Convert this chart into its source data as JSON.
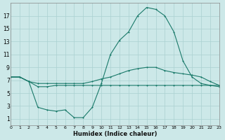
{
  "bg_color": "#cce8e8",
  "grid_color": "#aad0d0",
  "line_color": "#1a7a6a",
  "xlabel": "Humidex (Indice chaleur)",
  "xlim": [
    0,
    23
  ],
  "ylim": [
    0,
    19
  ],
  "yticks": [
    1,
    3,
    5,
    7,
    9,
    11,
    13,
    15,
    17
  ],
  "xticks": [
    0,
    1,
    2,
    3,
    4,
    5,
    6,
    7,
    8,
    9,
    10,
    11,
    12,
    13,
    14,
    15,
    16,
    17,
    18,
    19,
    20,
    21,
    22,
    23
  ],
  "line1_x": [
    0,
    1,
    2,
    3,
    4,
    5,
    6,
    7,
    8,
    9,
    10,
    11,
    12,
    13,
    14,
    15,
    16,
    17,
    18,
    19,
    20,
    21,
    22,
    23
  ],
  "line1_y": [
    7.5,
    7.5,
    6.8,
    6.0,
    6.0,
    6.2,
    6.2,
    6.2,
    6.2,
    6.2,
    6.2,
    6.2,
    6.2,
    6.2,
    6.2,
    6.2,
    6.2,
    6.2,
    6.2,
    6.2,
    6.2,
    6.2,
    6.2,
    6.2
  ],
  "line2_x": [
    0,
    1,
    2,
    3,
    4,
    5,
    6,
    7,
    8,
    9,
    10,
    11,
    12,
    13,
    14,
    15,
    16,
    17,
    18,
    19,
    20,
    21,
    22,
    23
  ],
  "line2_y": [
    7.5,
    7.5,
    6.8,
    6.5,
    6.5,
    6.5,
    6.5,
    6.5,
    6.5,
    6.8,
    7.2,
    7.5,
    8.0,
    8.5,
    8.8,
    9.0,
    9.0,
    8.5,
    8.2,
    8.0,
    7.8,
    7.5,
    6.8,
    6.2
  ],
  "line3_x": [
    0,
    1,
    2,
    3,
    4,
    5,
    6,
    7,
    8,
    9,
    10,
    11,
    12,
    13,
    14,
    15,
    16,
    17,
    18,
    19,
    20,
    21,
    22,
    23
  ],
  "line3_y": [
    7.5,
    7.5,
    6.8,
    2.8,
    2.4,
    2.2,
    2.4,
    1.2,
    1.2,
    2.8,
    6.5,
    11.0,
    13.2,
    14.5,
    17.0,
    18.3,
    18.0,
    17.0,
    14.5,
    10.0,
    7.5,
    6.5,
    6.2,
    6.0
  ]
}
